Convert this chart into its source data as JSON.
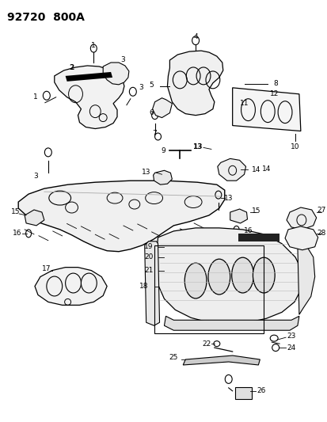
{
  "title": "92720  800A",
  "bg": "#ffffff",
  "fw": 4.14,
  "fh": 5.33,
  "dpi": 100
}
